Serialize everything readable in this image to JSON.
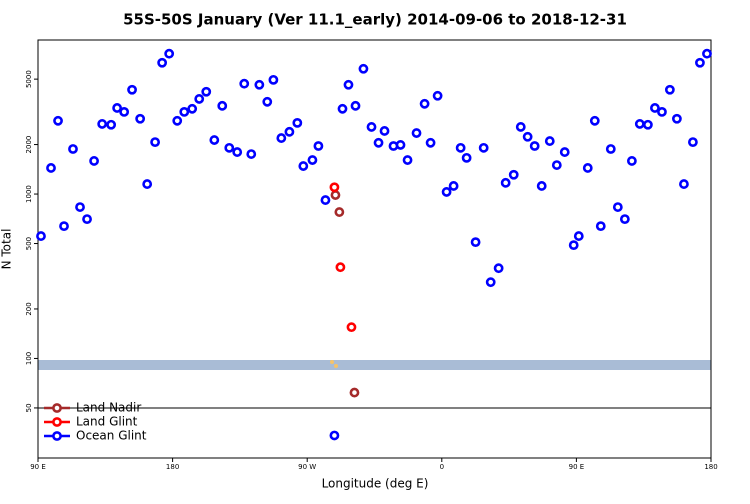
{
  "chart_data": {
    "type": "scatter",
    "title": "55S-50S January (Ver 11.1_early)   2014-09-06 to 2018-12-31",
    "x_label": "Longitude (deg E)",
    "y_label": "N Total",
    "log_y": true,
    "xlim": [
      90,
      540
    ],
    "ylim": [
      24.8,
      8650
    ],
    "xticks": [
      {
        "value": 90,
        "label": "90 E"
      },
      {
        "value": 180,
        "label": "180"
      },
      {
        "value": 270,
        "label": "90 W"
      },
      {
        "value": 360,
        "label": "0"
      },
      {
        "value": 450,
        "label": "90 E"
      },
      {
        "value": 540,
        "label": "180"
      }
    ],
    "yticks": [
      50,
      100,
      200,
      500,
      1000,
      2000,
      5000
    ],
    "legend": "bottom-left",
    "series": [
      {
        "name": "Land Nadir",
        "color": "#a52a2a",
        "x": [
          288.9,
          291.5,
          301.6
        ],
        "values": [
          986,
          777,
          62
        ]
      },
      {
        "name": "Land Glint",
        "color": "#ff0000",
        "x": [
          288.2,
          292.2,
          299.6
        ],
        "values": [
          1100,
          359,
          155
        ]
      },
      {
        "name": "Ocean Glint",
        "color": "#0000ff",
        "x": [
          92.0,
          98.7,
          103.4,
          107.4,
          113.4,
          118.1,
          122.8,
          127.5,
          132.9,
          138.9,
          142.9,
          147.6,
          152.9,
          158.3,
          163.0,
          168.3,
          173.0,
          177.7,
          183.1,
          187.8,
          193.1,
          197.8,
          202.5,
          207.9,
          213.2,
          217.9,
          223.2,
          227.9,
          232.6,
          238.0,
          243.3,
          247.4,
          252.7,
          258.1,
          263.4,
          267.4,
          273.5,
          277.5,
          282.2,
          293.6,
          297.6,
          302.3,
          307.6,
          313.0,
          317.7,
          321.7,
          327.7,
          332.4,
          337.1,
          343.1,
          348.5,
          352.5,
          357.2,
          363.2,
          367.9,
          372.6,
          376.6,
          382.6,
          388.0,
          392.7,
          398.0,
          402.7,
          408.1,
          412.8,
          417.4,
          422.1,
          426.8,
          432.2,
          436.9,
          442.2,
          448.2,
          451.6,
          457.6,
          462.3,
          466.3,
          473.0,
          477.7,
          482.4,
          487.1,
          492.4,
          497.8,
          502.5,
          507.2,
          512.5,
          517.2,
          521.9,
          527.9,
          532.6,
          537.3,
          288.2
        ],
        "values": [
          555,
          1441,
          2790,
          638,
          1880,
          833,
          704,
          1590,
          2670,
          2640,
          3340,
          3160,
          4310,
          2870,
          1150,
          2070,
          6290,
          7140,
          2790,
          3160,
          3300,
          3790,
          4190,
          2130,
          3440,
          1910,
          1800,
          4690,
          1750,
          4620,
          3640,
          4950,
          2190,
          2390,
          2710,
          1480,
          1610,
          1960,
          919,
          3300,
          4620,
          3440,
          5780,
          2560,
          2050,
          2420,
          1960,
          1990,
          1610,
          2350,
          3540,
          2050,
          3960,
          1030,
          1120,
          1910,
          1660,
          510,
          1910,
          291,
          354,
          1170,
          1310,
          2560,
          2230,
          1960,
          1120,
          2100,
          1500,
          1800,
          489,
          555,
          1441,
          2790,
          638,
          1880,
          833,
          704,
          1590,
          2670,
          2640,
          3340,
          3160,
          4310,
          2870,
          1150,
          2070,
          6290,
          7140,
          34
        ]
      }
    ]
  }
}
